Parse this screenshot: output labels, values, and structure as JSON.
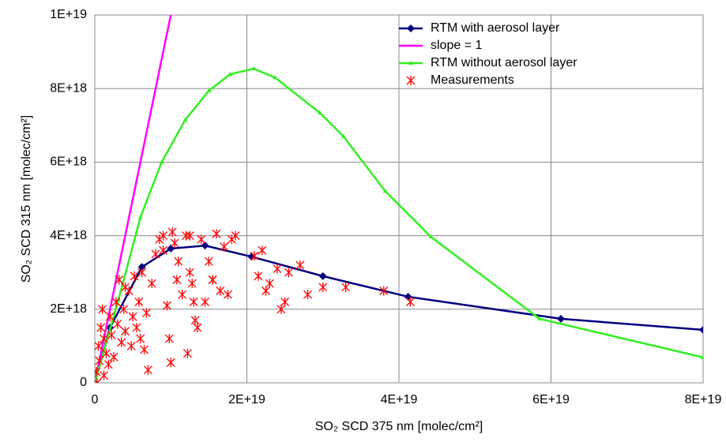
{
  "chart_data": {
    "type": "scatter",
    "xlabel": "SO₂ SCD 375 nm [molec/cm²]",
    "ylabel": "SO₂ SCD 315 nm [molec/cm²]",
    "xlim": [
      0,
      8e+19
    ],
    "ylim": [
      0,
      1e+19
    ],
    "xticks": [
      0,
      {
        "value": 2e+19,
        "label": "2E+19"
      },
      {
        "value": 4e+19,
        "label": "4E+19"
      },
      {
        "value": 6e+19,
        "label": "6E+19"
      },
      {
        "value": 8e+19,
        "label": "8E+19"
      }
    ],
    "yticks": [
      0,
      {
        "value": 2e+18,
        "label": "2E+18"
      },
      {
        "value": 4e+18,
        "label": "4E+18"
      },
      {
        "value": 6e+18,
        "label": "6E+18"
      },
      {
        "value": 8e+18,
        "label": "8E+18"
      },
      {
        "value": 1e+19,
        "label": "1E+19"
      }
    ],
    "grid": true,
    "legend": "top-right",
    "series": [
      {
        "name": "RTM with aerosol layer",
        "color": "#000080",
        "marker": "diamond",
        "line": true,
        "x": [
          0,
          2e+18,
          6.2e+18,
          1e+19,
          1.45e+19,
          2.06e+19,
          3e+19,
          4.12e+19,
          6.13e+19,
          8e+19
        ],
        "values": [
          0,
          1.5e+18,
          3.15e+18,
          3.65e+18,
          3.73e+18,
          3.43e+18,
          2.9e+18,
          2.34e+18,
          1.74e+18,
          1.44e+18
        ]
      },
      {
        "name": "slope = 1",
        "color": "#ff00ff",
        "marker": "none",
        "line": true,
        "x": [
          0,
          1e+19
        ],
        "values": [
          0,
          1e+19
        ]
      },
      {
        "name": "RTM without aerosol layer",
        "color": "#33ee22",
        "marker": "triangle",
        "line": true,
        "x": [
          0,
          3.1e+18,
          6e+18,
          8.8e+18,
          1.19e+19,
          1.5e+19,
          1.78e+19,
          2.09e+19,
          2.37e+19,
          2.96e+19,
          3.27e+19,
          3.82e+19,
          4.42e+19,
          5.85e+19,
          8e+19
        ],
        "values": [
          0,
          2.25e+18,
          4.5e+18,
          6e+18,
          7.15e+18,
          7.94e+18,
          8.39e+18,
          8.54e+18,
          8.3e+18,
          7.34e+18,
          6.7e+18,
          5.21e+18,
          3.97e+18,
          1.74e+18,
          6.9e+17
        ]
      },
      {
        "name": "Measurements",
        "color": "#ff0000",
        "marker": "asterisk",
        "line": false,
        "x": [
          2e+17,
          5e+17,
          8e+17,
          1e+18,
          1.2e+18,
          1.5e+18,
          1.8e+18,
          2e+18,
          2.2e+18,
          2.5e+18,
          2.8e+18,
          3e+18,
          3.2e+18,
          3.5e+18,
          3.8e+18,
          4e+18,
          4.5e+18,
          4.8e+18,
          5e+18,
          5.2e+18,
          5.5e+18,
          5.8e+18,
          6e+18,
          6.2e+18,
          6.5e+18,
          6.8e+18,
          7e+18,
          7.5e+18,
          8e+18,
          8.5e+18,
          9e+18,
          9.5e+18,
          9.8e+18,
          1e+19,
          1.02e+19,
          1.05e+19,
          1.08e+19,
          1.1e+19,
          1.15e+19,
          1.2e+19,
          1.22e+19,
          1.25e+19,
          1.28e+19,
          1.3e+19,
          1.32e+19,
          1.35e+19,
          1.4e+19,
          1.45e+19,
          1.5e+19,
          1.55e+19,
          1.6e+19,
          1.65e+19,
          1.7e+19,
          1.75e+19,
          1.8e+19,
          1.85e+19,
          2.1e+19,
          2.15e+19,
          2.2e+19,
          2.25e+19,
          2.3e+19,
          2.4e+19,
          2.45e+19,
          2.5e+19,
          2.55e+19,
          2.7e+19,
          2.8e+19,
          3e+19,
          3.3e+19,
          3.8e+19,
          4.15e+19,
          1.2e+18,
          3e+17,
          6e+17,
          4e+18,
          9e+18,
          1.25e+19,
          1.55e+19
        ],
        "values": [
          3e+17,
          1e+18,
          1.5e+18,
          2e+18,
          1.2e+18,
          8e+17,
          5e+17,
          1.8e+18,
          1.3e+18,
          7e+17,
          2.2e+18,
          1.6e+18,
          2.8e+18,
          1.1e+18,
          2e+18,
          1.4e+18,
          2.5e+18,
          1e+18,
          1.8e+18,
          2.9e+18,
          1.5e+18,
          2.2e+18,
          1.2e+18,
          3e+18,
          9e+17,
          1.9e+18,
          3.5e+17,
          2.7e+18,
          3.5e+18,
          3.9e+18,
          3.6e+18,
          2.1e+18,
          1.2e+18,
          5.5e+17,
          4.1e+18,
          3.8e+18,
          2.8e+18,
          3.3e+18,
          2.4e+18,
          4e+18,
          8e+17,
          3e+18,
          2.7e+18,
          2.2e+18,
          1.7e+18,
          1.5e+18,
          3.9e+18,
          2.2e+18,
          3.3e+18,
          2.8e+18,
          4.05e+18,
          2.5e+18,
          3.7e+18,
          2.4e+18,
          3.9e+18,
          4e+18,
          3.45e+18,
          2.9e+18,
          3.6e+18,
          2.5e+18,
          2.7e+18,
          3.1e+18,
          2e+18,
          2.2e+18,
          3e+18,
          3.2e+18,
          2.4e+18,
          2.6e+18,
          2.6e+18,
          2.5e+18,
          2.2e+18,
          2e+17,
          0,
          6e+17,
          2.6e+18,
          4e+18,
          4e+18,
          2.8e+18
        ]
      }
    ]
  }
}
